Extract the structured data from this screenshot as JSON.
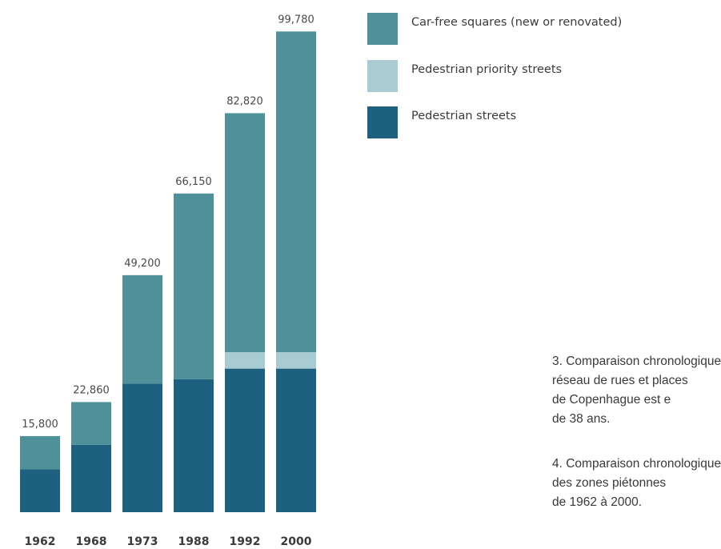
{
  "chart_data": {
    "type": "bar",
    "stacked": true,
    "categories": [
      "1962",
      "1968",
      "1973",
      "1988",
      "1992",
      "2000"
    ],
    "totals_labels": [
      "15,800",
      "22,860",
      "49,200",
      "66,150",
      "82,820",
      "99,780"
    ],
    "totals": [
      15800,
      22860,
      49200,
      66150,
      82820,
      99780
    ],
    "series": [
      {
        "name": "Pedestrian streets",
        "color": "#1e607f",
        "values": [
          8900,
          14000,
          26700,
          27600,
          29800,
          29800
        ]
      },
      {
        "name": "Pedestrian priority streets",
        "color": "#a9ccd3",
        "values": [
          0,
          0,
          0,
          0,
          3400,
          3400
        ]
      },
      {
        "name": "Car-free squares (new or renovated)",
        "color": "#4f9199",
        "values": [
          6900,
          8860,
          22500,
          38550,
          49620,
          66580
        ]
      }
    ],
    "legend_order": [
      "Car-free squares (new or renovated)",
      "Pedestrian priority streets",
      "Pedestrian streets"
    ],
    "legend_position": "top-right",
    "ylim": [
      0,
      100000
    ],
    "grid": false
  },
  "captions": [
    {
      "lines": [
        "3. Comparaison chronologique",
        "réseau de rues et places",
        "de Copenhague est e",
        "de 38 ans."
      ]
    },
    {
      "lines": [
        "4. Comparaison chronologique",
        "des zones piétonnes",
        "de 1962 à 2000."
      ]
    }
  ]
}
